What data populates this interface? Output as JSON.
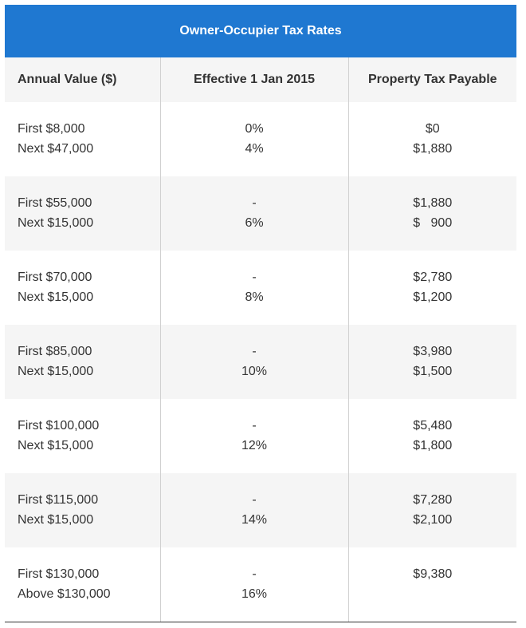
{
  "table": {
    "title": "Owner-Occupier Tax Rates",
    "headers": [
      "Annual Value ($)",
      "Effective 1 Jan 2015",
      "Property Tax Payable"
    ],
    "rows": [
      {
        "annual_value": [
          "First $8,000",
          "Next $47,000"
        ],
        "rate": [
          "0%",
          "4%"
        ],
        "payable": [
          "$0",
          "$1,880"
        ]
      },
      {
        "annual_value": [
          "First $55,000",
          "Next $15,000"
        ],
        "rate": [
          "-",
          "6%"
        ],
        "payable": [
          "$1,880",
          "$   900"
        ]
      },
      {
        "annual_value": [
          "First $70,000",
          "Next $15,000"
        ],
        "rate": [
          "-",
          "8%"
        ],
        "payable": [
          "$2,780",
          "$1,200"
        ]
      },
      {
        "annual_value": [
          "First $85,000",
          "Next $15,000"
        ],
        "rate": [
          "-",
          "10%"
        ],
        "payable": [
          "$3,980",
          "$1,500"
        ]
      },
      {
        "annual_value": [
          "First $100,000",
          "Next $15,000"
        ],
        "rate": [
          "-",
          "12%"
        ],
        "payable": [
          "$5,480",
          "$1,800"
        ]
      },
      {
        "annual_value": [
          "First $115,000",
          "Next $15,000"
        ],
        "rate": [
          "-",
          "14%"
        ],
        "payable": [
          "$7,280",
          "$2,100"
        ]
      },
      {
        "annual_value": [
          "First $130,000",
          "Above $130,000"
        ],
        "rate": [
          "-",
          "16%"
        ],
        "payable": [
          "$9,380",
          ""
        ]
      }
    ]
  },
  "colors": {
    "title_bg": "#1f78d1",
    "title_text": "#ffffff",
    "stripe": "#f5f5f5",
    "text": "#333333"
  }
}
